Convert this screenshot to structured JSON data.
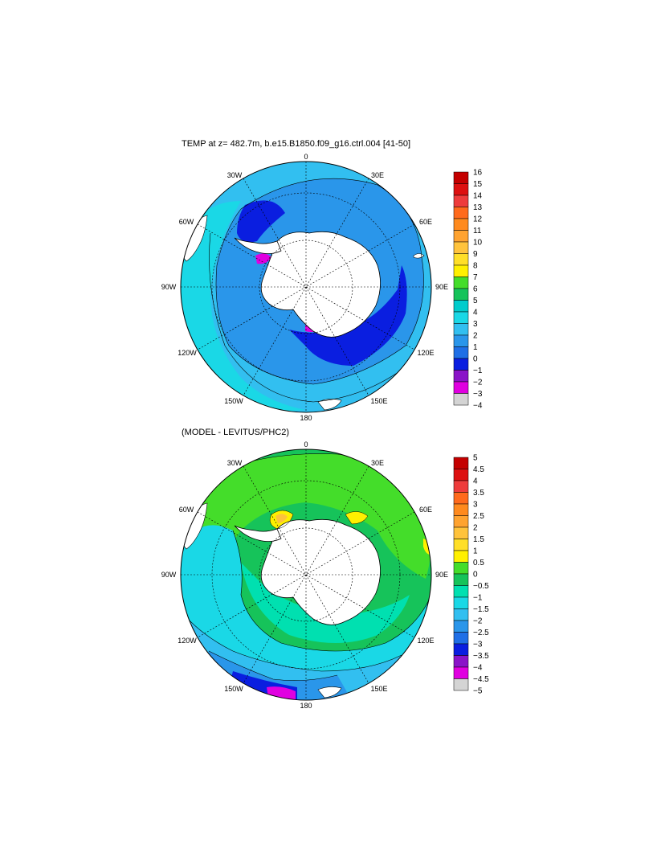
{
  "panels": [
    {
      "title": "TEMP at z= 482.7m, b.e15.B1850.f09_g16.ctrl.004 [41-50]",
      "lon_labels": [
        "0",
        "30E",
        "60E",
        "90E",
        "120E",
        "150E",
        "180",
        "150W",
        "120W",
        "90W",
        "60W",
        "30W"
      ],
      "colorbar": {
        "labels": [
          "16",
          "15",
          "14",
          "13",
          "12",
          "11",
          "10",
          "9",
          "8",
          "7",
          "6",
          "5",
          "4",
          "3",
          "2",
          "1",
          "0",
          "−1",
          "−2",
          "−3",
          "−4"
        ],
        "colors": [
          "#c40000",
          "#dd1010",
          "#ee3c3c",
          "#ff6a1c",
          "#ff8a1e",
          "#ffa330",
          "#ffc33c",
          "#ffdf28",
          "#fff000",
          "#44dd2a",
          "#16c35a",
          "#00cccc",
          "#1ad8e6",
          "#32bff0",
          "#2a96ea",
          "#1f6fe6",
          "#0a1ee0",
          "#8a14c8",
          "#e000e0",
          "#d4d4d4",
          "#707070"
        ]
      }
    },
    {
      "title": "(MODEL - LEVITUS/PHC2)",
      "lon_labels": [
        "0",
        "30E",
        "60E",
        "90E",
        "120E",
        "150E",
        "180",
        "150W",
        "120W",
        "90W",
        "60W",
        "30W"
      ],
      "colorbar": {
        "labels": [
          "5",
          "4.5",
          "4",
          "3.5",
          "3",
          "2.5",
          "2",
          "1.5",
          "1",
          "0.5",
          "0",
          "−0.5",
          "−1",
          "−1.5",
          "−2",
          "−2.5",
          "−3",
          "−3.5",
          "−4",
          "−4.5",
          "−5"
        ],
        "colors": [
          "#c40000",
          "#dd1010",
          "#ee3c3c",
          "#ff6a1c",
          "#ff8a1e",
          "#ffa330",
          "#ffc33c",
          "#ffdf28",
          "#fff000",
          "#44dd2a",
          "#16c35a",
          "#00e0b0",
          "#1ad8e6",
          "#32bff0",
          "#2a96ea",
          "#1f6fe6",
          "#0a1ee0",
          "#8a14c8",
          "#e000e0",
          "#d4d4d4",
          "#707070"
        ]
      }
    }
  ]
}
